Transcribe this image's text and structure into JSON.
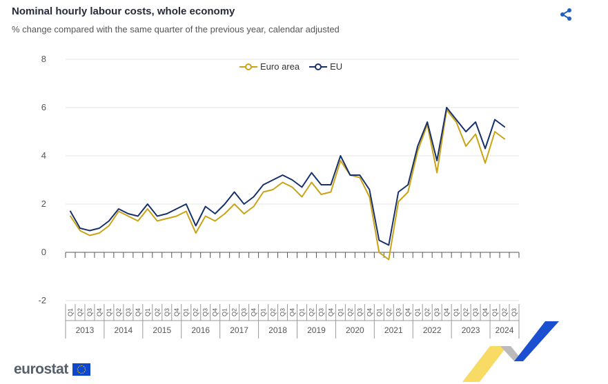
{
  "header": {
    "title": "Nominal hourly labour costs, whole economy",
    "subtitle": "% change compared with the same quarter of the previous year, calendar adjusted"
  },
  "footer": {
    "logo_text": "eurostat"
  },
  "colors": {
    "euro_area": "#c9a314",
    "eu": "#17306b",
    "grid": "#e6e6e6",
    "axis": "#555555"
  },
  "icons": {
    "share": "share-icon",
    "flag": "eu-flag-icon"
  },
  "chart_data": {
    "type": "line",
    "title": "Nominal hourly labour costs, whole economy",
    "subtitle": "% change compared with the same quarter of the previous year, calendar adjusted",
    "xlabel": "",
    "ylabel": "",
    "ylim": [
      -2,
      8
    ],
    "yticks": [
      8,
      6,
      4,
      2,
      0,
      -2
    ],
    "grid": true,
    "legend_position": "top-center",
    "years": [
      "2013",
      "2014",
      "2015",
      "2016",
      "2017",
      "2018",
      "2019",
      "2020",
      "2021",
      "2022",
      "2023",
      "2024"
    ],
    "quarters": [
      "Q1",
      "Q2",
      "Q3",
      "Q4"
    ],
    "x": [
      "2013Q1",
      "2013Q2",
      "2013Q3",
      "2013Q4",
      "2014Q1",
      "2014Q2",
      "2014Q3",
      "2014Q4",
      "2015Q1",
      "2015Q2",
      "2015Q3",
      "2015Q4",
      "2016Q1",
      "2016Q2",
      "2016Q3",
      "2016Q4",
      "2017Q1",
      "2017Q2",
      "2017Q3",
      "2017Q4",
      "2018Q1",
      "2018Q2",
      "2018Q3",
      "2018Q4",
      "2019Q1",
      "2019Q2",
      "2019Q3",
      "2019Q4",
      "2020Q1",
      "2020Q2",
      "2020Q3",
      "2020Q4",
      "2021Q1",
      "2021Q2",
      "2021Q3",
      "2021Q4",
      "2022Q1",
      "2022Q2",
      "2022Q3",
      "2022Q4",
      "2023Q1",
      "2023Q2",
      "2023Q3",
      "2023Q4",
      "2024Q1",
      "2024Q2",
      "2024Q3"
    ],
    "series": [
      {
        "name": "Euro area",
        "color": "#c9a314",
        "values": [
          1.5,
          0.9,
          0.7,
          0.8,
          1.1,
          1.7,
          1.5,
          1.3,
          1.8,
          1.3,
          1.4,
          1.5,
          1.7,
          0.8,
          1.5,
          1.3,
          1.6,
          2.0,
          1.6,
          1.9,
          2.5,
          2.6,
          2.9,
          2.7,
          2.3,
          2.9,
          2.4,
          2.5,
          3.8,
          3.2,
          3.1,
          2.3,
          0.0,
          -0.3,
          2.1,
          2.5,
          4.2,
          5.3,
          3.3,
          5.9,
          5.4,
          4.4,
          4.9,
          3.7,
          5.0,
          4.7,
          null
        ]
      },
      {
        "name": "EU",
        "color": "#17306b",
        "values": [
          1.7,
          1.0,
          0.9,
          1.0,
          1.3,
          1.8,
          1.6,
          1.5,
          2.0,
          1.5,
          1.6,
          1.8,
          2.0,
          1.1,
          1.9,
          1.6,
          2.0,
          2.5,
          2.0,
          2.3,
          2.8,
          3.0,
          3.2,
          3.0,
          2.7,
          3.3,
          2.8,
          2.8,
          4.0,
          3.2,
          3.2,
          2.6,
          0.5,
          0.3,
          2.5,
          2.8,
          4.4,
          5.4,
          3.8,
          6.0,
          5.5,
          5.0,
          5.4,
          4.3,
          5.5,
          5.2,
          null
        ]
      }
    ]
  }
}
